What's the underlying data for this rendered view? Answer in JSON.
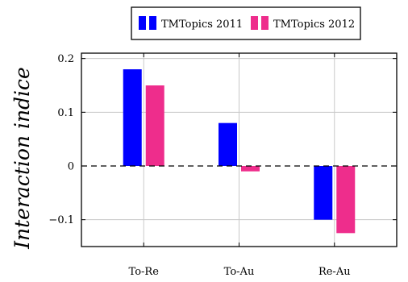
{
  "chart_data": {
    "type": "bar",
    "title": "",
    "xlabel": "",
    "ylabel": "Interaction indice",
    "categories": [
      "To-Re",
      "To-Au",
      "Re-Au"
    ],
    "series": [
      {
        "name": "TMTopics 2011",
        "color": "#0000ff",
        "values": [
          0.18,
          0.08,
          -0.1
        ]
      },
      {
        "name": "TMTopics 2012",
        "color": "#ee2d8c",
        "values": [
          0.15,
          -0.01,
          -0.125
        ]
      }
    ],
    "ylim": [
      -0.15,
      0.21
    ],
    "yticks": [
      -0.1,
      0,
      0.1,
      0.2
    ],
    "ytick_labels": [
      "−0.1",
      "0",
      "0.1",
      "0.2"
    ],
    "grid": true,
    "zero_line": "dashed",
    "legend_position": "top"
  }
}
